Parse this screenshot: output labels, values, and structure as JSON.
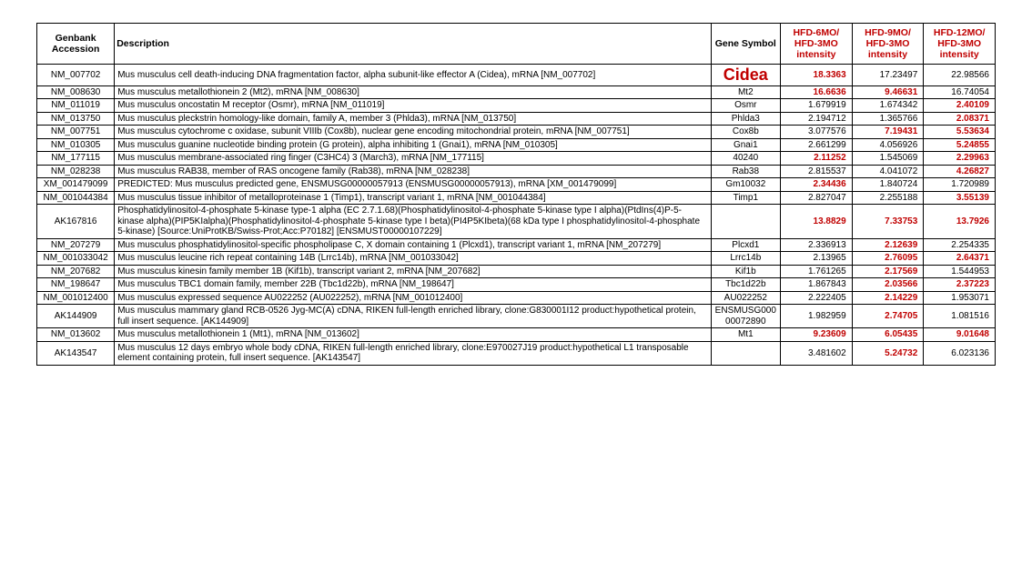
{
  "columns": {
    "accession": "Genbank Accession",
    "description": "Description",
    "symbol": "Gene Symbol",
    "r6": "HFD-6MO/ HFD-3MO intensity",
    "r9": "HFD-9MO/ HFD-3MO intensity",
    "r12": "HFD-12MO/ HFD-3MO intensity"
  },
  "rows": [
    {
      "acc": "NM_007702",
      "desc": "Mus musculus cell death-inducing DNA fragmentation factor, alpha subunit-like effector A (Cidea), mRNA [NM_007702]",
      "sym": "Cidea",
      "sym_class": "cidea",
      "v6": "18.3363",
      "c6": "red",
      "v9": "17.23497",
      "c9": "",
      "v12": "22.98566",
      "c12": ""
    },
    {
      "acc": "NM_008630",
      "desc": "Mus musculus metallothionein 2 (Mt2), mRNA [NM_008630]",
      "sym": "Mt2",
      "v6": "16.6636",
      "c6": "red",
      "v9": "9.46631",
      "c9": "red",
      "v12": "16.74054",
      "c12": ""
    },
    {
      "acc": "NM_011019",
      "desc": "Mus musculus oncostatin M receptor (Osmr), mRNA [NM_011019]",
      "sym": "Osmr",
      "v6": "1.679919",
      "c6": "",
      "v9": "1.674342",
      "c9": "",
      "v12": "2.40109",
      "c12": "red"
    },
    {
      "acc": "NM_013750",
      "desc": "Mus musculus pleckstrin homology-like domain, family A, member 3 (Phlda3), mRNA [NM_013750]",
      "sym": "Phlda3",
      "v6": "2.194712",
      "c6": "",
      "v9": "1.365766",
      "c9": "",
      "v12": "2.08371",
      "c12": "red"
    },
    {
      "acc": "NM_007751",
      "desc": "Mus musculus cytochrome c oxidase, subunit VIIIb (Cox8b), nuclear gene encoding mitochondrial protein, mRNA [NM_007751]",
      "sym": "Cox8b",
      "v6": "3.077576",
      "c6": "",
      "v9": "7.19431",
      "c9": "red",
      "v12": "5.53634",
      "c12": "red"
    },
    {
      "acc": "NM_010305",
      "desc": "Mus musculus guanine nucleotide binding protein (G protein), alpha inhibiting 1 (Gnai1), mRNA [NM_010305]",
      "sym": "Gnai1",
      "v6": "2.661299",
      "c6": "",
      "v9": "4.056926",
      "c9": "",
      "v12": "5.24855",
      "c12": "red"
    },
    {
      "acc": "NM_177115",
      "desc": "Mus musculus membrane-associated ring finger (C3HC4) 3 (March3), mRNA [NM_177115]",
      "sym": "40240",
      "v6": "2.11252",
      "c6": "red",
      "v9": "1.545069",
      "c9": "",
      "v12": "2.29963",
      "c12": "red"
    },
    {
      "acc": "NM_028238",
      "desc": "Mus musculus RAB38, member of RAS oncogene family (Rab38), mRNA [NM_028238]",
      "sym": "Rab38",
      "v6": "2.815537",
      "c6": "",
      "v9": "4.041072",
      "c9": "",
      "v12": "4.26827",
      "c12": "red"
    },
    {
      "acc": "XM_001479099",
      "desc": "PREDICTED: Mus musculus predicted gene, ENSMUSG00000057913 (ENSMUSG00000057913), mRNA [XM_001479099]",
      "sym": "Gm10032",
      "v6": "2.34436",
      "c6": "red",
      "v9": "1.840724",
      "c9": "",
      "v12": "1.720989",
      "c12": ""
    },
    {
      "acc": "NM_001044384",
      "desc": "Mus musculus tissue inhibitor of metalloproteinase 1 (Timp1), transcript variant 1, mRNA [NM_001044384]",
      "sym": "Timp1",
      "v6": "2.827047",
      "c6": "",
      "v9": "2.255188",
      "c9": "",
      "v12": "3.55139",
      "c12": "red"
    },
    {
      "acc": "AK167816",
      "desc": "Phosphatidylinositol-4-phosphate 5-kinase type-1 alpha (EC 2.7.1.68)(Phosphatidylinositol-4-phosphate 5-kinase type I alpha)(PtdIns(4)P-5-kinase alpha)(PIP5KIalpha)(Phosphatidylinositol-4-phosphate 5-kinase type I beta)(PI4P5KIbeta)(68 kDa type I phosphatidylinositol-4-phosphate 5-kinase) [Source:UniProtKB/Swiss-Prot;Acc:P70182] [ENSMUST00000107229]",
      "sym": "",
      "v6": "13.8829",
      "c6": "red",
      "v9": "7.33753",
      "c9": "red",
      "v12": "13.7926",
      "c12": "red"
    },
    {
      "acc": "NM_207279",
      "desc": "Mus musculus phosphatidylinositol-specific phospholipase C, X domain containing 1 (Plcxd1), transcript variant 1, mRNA [NM_207279]",
      "sym": "Plcxd1",
      "v6": "2.336913",
      "c6": "",
      "v9": "2.12639",
      "c9": "red",
      "v12": "2.254335",
      "c12": ""
    },
    {
      "acc": "NM_001033042",
      "desc": "Mus musculus leucine rich repeat containing 14B (Lrrc14b), mRNA [NM_001033042]",
      "sym": "Lrrc14b",
      "v6": "2.13965",
      "c6": "",
      "v9": "2.76095",
      "c9": "red",
      "v12": "2.64371",
      "c12": "red"
    },
    {
      "acc": "NM_207682",
      "desc": "Mus musculus kinesin family member 1B (Kif1b), transcript variant 2, mRNA [NM_207682]",
      "sym": "Kif1b",
      "v6": "1.761265",
      "c6": "",
      "v9": "2.17569",
      "c9": "red",
      "v12": "1.544953",
      "c12": ""
    },
    {
      "acc": "NM_198647",
      "desc": "Mus musculus TBC1 domain family, member 22B (Tbc1d22b), mRNA [NM_198647]",
      "sym": "Tbc1d22b",
      "v6": "1.867843",
      "c6": "",
      "v9": "2.03566",
      "c9": "red",
      "v12": "2.37223",
      "c12": "red"
    },
    {
      "acc": "NM_001012400",
      "desc": "Mus musculus expressed sequence AU022252 (AU022252), mRNA [NM_001012400]",
      "sym": "AU022252",
      "v6": "2.222405",
      "c6": "",
      "v9": "2.14229",
      "c9": "red",
      "v12": "1.953071",
      "c12": ""
    },
    {
      "acc": "AK144909",
      "desc": "Mus musculus mammary gland RCB-0526 Jyg-MC(A) cDNA, RIKEN full-length enriched library, clone:G830001I12 product:hypothetical protein, full insert sequence. [AK144909]",
      "sym": "ENSMUSG00000072890",
      "v6": "1.982959",
      "c6": "",
      "v9": "2.74705",
      "c9": "red",
      "v12": "1.081516",
      "c12": ""
    },
    {
      "acc": "NM_013602",
      "desc": "Mus musculus metallothionein 1 (Mt1), mRNA [NM_013602]",
      "sym": "Mt1",
      "v6": "9.23609",
      "c6": "red",
      "v9": "6.05435",
      "c9": "red",
      "v12": "9.01648",
      "c12": "red"
    },
    {
      "acc": "AK143547",
      "desc": "Mus musculus 12 days embryo whole body cDNA, RIKEN full-length enriched library, clone:E970027J19 product:hypothetical L1 transposable element containing protein, full insert sequence. [AK143547]",
      "sym": "",
      "v6": "3.481602",
      "c6": "",
      "v9": "5.24732",
      "c9": "red",
      "v12": "6.023136",
      "c12": ""
    }
  ]
}
